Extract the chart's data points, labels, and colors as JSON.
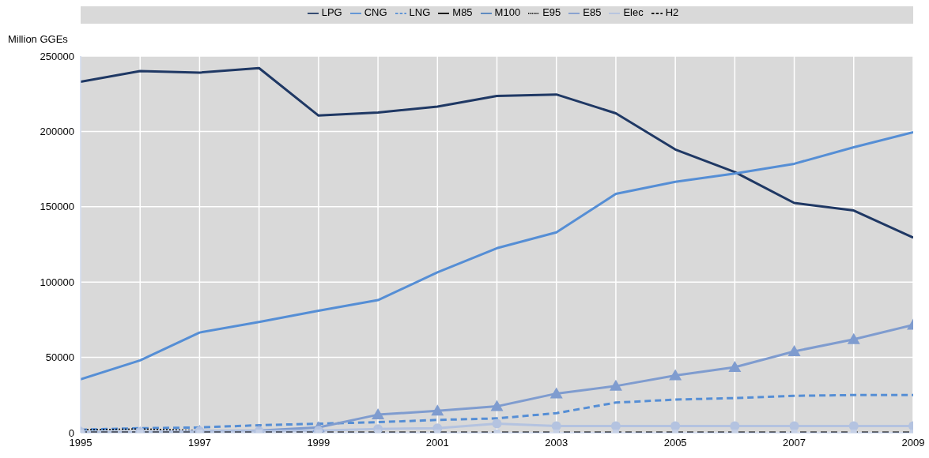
{
  "chart_data": {
    "type": "line",
    "ylabel": "Million GGEs",
    "x": [
      1995,
      1996,
      1997,
      1998,
      1999,
      2000,
      2001,
      2002,
      2003,
      2004,
      2005,
      2006,
      2007,
      2008,
      2009
    ],
    "xlim": [
      1995,
      2009
    ],
    "xticks": [
      1995,
      {
        "value": 1996,
        "label": null
      },
      1997,
      {
        "value": 1998,
        "label": null
      },
      1999,
      {
        "value": 2000,
        "label": null
      },
      2001,
      {
        "value": 2002,
        "label": null
      },
      2003,
      {
        "value": 2004,
        "label": null
      },
      2005,
      {
        "value": 2006,
        "label": null
      },
      2007,
      {
        "value": 2008,
        "label": null
      },
      2009
    ],
    "ylim": [
      0,
      250000
    ],
    "yticks": [
      0,
      50000,
      100000,
      150000,
      200000,
      250000
    ],
    "grid": true,
    "legend": "top",
    "series": [
      {
        "name": "LPG",
        "color": "#1f3864",
        "line_style": "solid",
        "marker": "none",
        "values": [
          233000,
          240000,
          239000,
          242000,
          210500,
          212500,
          216500,
          223500,
          224500,
          212000,
          188000,
          173000,
          152500,
          147500,
          129500
        ]
      },
      {
        "name": "CNG",
        "color": "#558ed5",
        "line_style": "solid",
        "marker": "none",
        "values": [
          35500,
          48000,
          66500,
          73500,
          81000,
          88000,
          106500,
          122500,
          133000,
          158500,
          166500,
          172000,
          178500,
          189500,
          199500
        ]
      },
      {
        "name": "LNG",
        "color": "#558ed5",
        "line_style": "dashed",
        "marker": "none",
        "values": [
          2000,
          3000,
          3500,
          5000,
          6000,
          7000,
          8500,
          9500,
          13000,
          20000,
          22000,
          23000,
          24500,
          25000,
          25000
        ]
      },
      {
        "name": "M85",
        "color": "#000000",
        "line_style": "solid",
        "marker": "none",
        "values": [
          null,
          null,
          null,
          null,
          null,
          null,
          null,
          null,
          null,
          null,
          null,
          null,
          null,
          null,
          null
        ]
      },
      {
        "name": "M100",
        "color": "#4f81bd",
        "line_style": "solid",
        "marker": "none",
        "values": [
          null,
          null,
          null,
          null,
          null,
          null,
          null,
          null,
          null,
          null,
          null,
          null,
          null,
          null,
          null
        ]
      },
      {
        "name": "E85",
        "color": "#7f9ccf",
        "line_style": "solid",
        "marker": "triangle",
        "values": [
          0,
          0,
          1000,
          1500,
          3500,
          12000,
          14500,
          17500,
          26000,
          31000,
          38000,
          43500,
          54000,
          62000,
          71500
        ]
      },
      {
        "name": "E95",
        "color": "#000000",
        "line_style": "dotted",
        "marker": "none",
        "values": [
          2000,
          2500,
          1500,
          null,
          null,
          null,
          null,
          null,
          null,
          null,
          null,
          null,
          null,
          null,
          null
        ]
      },
      {
        "name": "Elec",
        "color": "#b4c3e0",
        "line_style": "solid",
        "marker": "circle",
        "values": [
          500,
          500,
          1000,
          1000,
          1500,
          2500,
          3000,
          6000,
          4500,
          4500,
          4500,
          4500,
          4500,
          4500,
          4500
        ]
      },
      {
        "name": "H2",
        "color": "#000000",
        "line_style": "dashed",
        "marker": "square",
        "values": [
          0,
          0,
          0,
          0,
          0,
          0,
          0,
          0,
          0,
          0,
          0,
          0,
          0,
          0,
          0
        ]
      }
    ]
  }
}
